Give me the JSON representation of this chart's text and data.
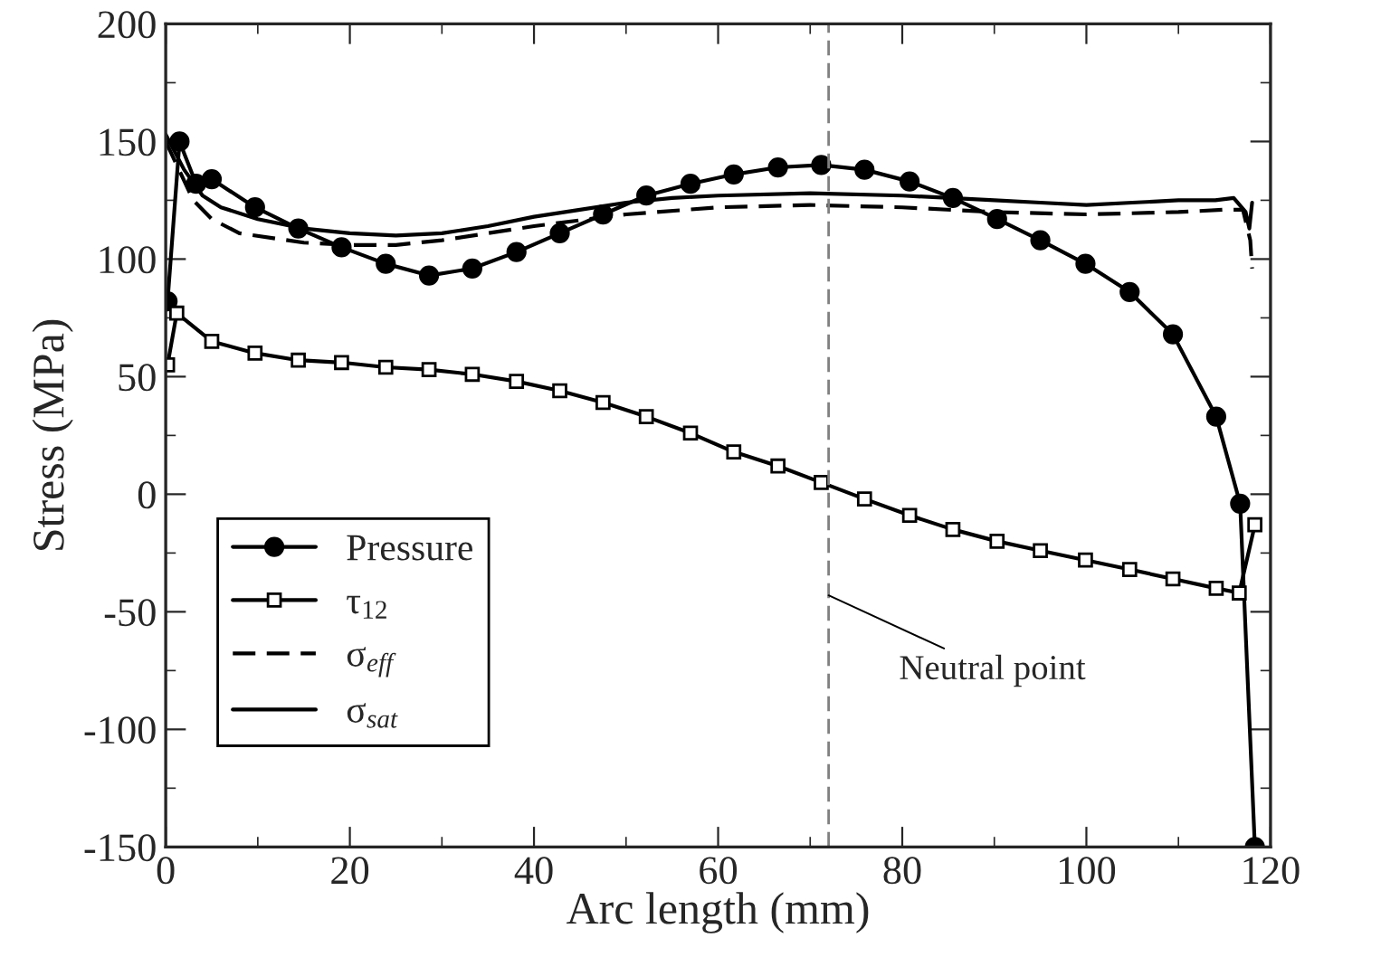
{
  "chart_data": {
    "type": "line",
    "xlabel": "Arc length (mm)",
    "ylabel": "Stress (MPa)",
    "xlim": [
      0,
      120
    ],
    "xticks": [
      0,
      20,
      40,
      60,
      80,
      100,
      120
    ],
    "ylim": [
      -150,
      200
    ],
    "yticks": [
      -150,
      -100,
      -50,
      0,
      50,
      100,
      150,
      200
    ],
    "grid": false,
    "legend": "lower left",
    "series": [
      {
        "name": "Pressure",
        "color": "#000000",
        "marker": "circle",
        "line_style": "solid",
        "x": [
          0.2,
          1.5,
          3.3,
          5.0,
          9.7,
          14.4,
          19.1,
          23.9,
          28.6,
          33.3,
          38.1,
          42.8,
          47.5,
          52.2,
          57.0,
          61.7,
          66.5,
          71.2,
          75.9,
          80.8,
          85.5,
          90.3,
          95.0,
          99.9,
          104.7,
          109.4,
          114.1,
          116.7,
          118.3
        ],
        "values": [
          82,
          150,
          132,
          134,
          122,
          113,
          105,
          98,
          93,
          96,
          103,
          111,
          119,
          127,
          132,
          136,
          139,
          140,
          138,
          133,
          126,
          117,
          108,
          98,
          86,
          68,
          33,
          -4,
          -150
        ]
      },
      {
        "name": "τ$_{12}$",
        "color": "#000000",
        "marker": "square",
        "line_style": "solid",
        "x": [
          0.2,
          1.2,
          5.0,
          9.7,
          14.4,
          19.1,
          23.9,
          28.6,
          33.3,
          38.1,
          42.8,
          47.5,
          52.2,
          57.0,
          61.7,
          66.5,
          71.2,
          75.9,
          80.8,
          85.5,
          90.3,
          95.0,
          99.9,
          104.7,
          109.4,
          114.1,
          116.6,
          118.3
        ],
        "values": [
          55,
          77,
          65,
          60,
          57,
          56,
          54,
          53,
          51,
          48,
          44,
          39,
          33,
          26,
          18,
          12,
          5,
          -2,
          -9,
          -15,
          -20,
          -24,
          -28,
          -32,
          -36,
          -40,
          -42,
          -13
        ]
      },
      {
        "name": "σ$_{eff}$",
        "color": "#000000",
        "marker": "none",
        "line_style": "dashed",
        "x": [
          0,
          3,
          5,
          8,
          15,
          20,
          25,
          30,
          40,
          50,
          60,
          70,
          80,
          90,
          100,
          110,
          115,
          117,
          117.8,
          118
        ],
        "values": [
          150,
          125,
          117,
          111,
          107,
          106,
          106,
          108,
          114,
          119,
          122,
          123,
          122,
          120,
          119,
          120,
          121,
          121,
          108,
          96
        ]
      },
      {
        "name": "σ$_{sat}$",
        "color": "#000000",
        "marker": "none",
        "line_style": "solid",
        "x": [
          0,
          2,
          4,
          6,
          10,
          15,
          20,
          25,
          30,
          35,
          40,
          45,
          50,
          55,
          60,
          70,
          80,
          90,
          95,
          100,
          105,
          110,
          114,
          116,
          117.3,
          117.7,
          118
        ],
        "values": [
          153,
          138,
          127,
          122,
          117,
          113,
          111,
          110,
          111,
          114,
          118,
          121,
          124,
          126,
          127,
          128,
          127,
          125,
          124,
          123,
          124,
          125,
          125,
          126,
          120,
          113,
          124
        ]
      }
    ],
    "ref_lines": [
      {
        "axis": "x",
        "value": 72,
        "color": "#808080",
        "line_style": "dashed"
      }
    ],
    "annotations": [
      {
        "text": "Neutral point",
        "x": 72,
        "y": -43
      }
    ]
  }
}
